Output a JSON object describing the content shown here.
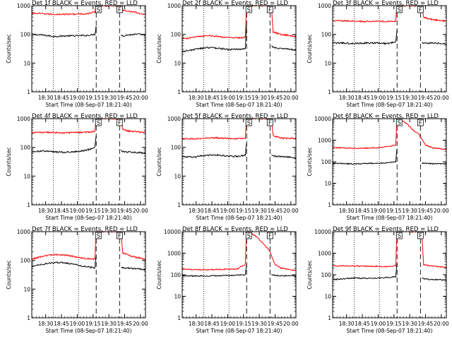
{
  "figure": {
    "colors": {
      "events": "#000000",
      "lld": "#ff0000",
      "axes": "#000000",
      "background": "#ffffff"
    },
    "xticks": [
      "18:30",
      "18:45",
      "19:00",
      "19:15",
      "19:30",
      "19:45",
      "20:00"
    ],
    "xtick_hours": [
      18.5,
      18.75,
      19.0,
      19.25,
      19.5,
      19.75,
      20.0
    ],
    "xlim_hours": [
      18.28,
      20.08
    ],
    "xlabel": "Start Time (08-Sep-07 18:21:40)",
    "ylabel": "Counts/sec",
    "dotted_lines_hours": [
      18.62,
      19.02
    ],
    "dashed_lines_hours": [
      19.3,
      19.67
    ],
    "markers": [
      "S",
      "F"
    ]
  },
  "chart_data": [
    {
      "type": "line",
      "title": "Det 1f BLACK = Events, RED = LLD",
      "ylim": [
        1,
        1000
      ],
      "yscale": "log",
      "yticks": [
        "1",
        "10",
        "100",
        "1000"
      ],
      "series": [
        {
          "name": "Events",
          "x": [
            18.28,
            18.45,
            18.62,
            18.8,
            19.0,
            19.15,
            19.28,
            19.295,
            19.69,
            19.72,
            19.8,
            19.9,
            20.0,
            20.08
          ],
          "y": [
            100,
            95,
            85,
            88,
            90,
            92,
            100,
            180,
            95,
            90,
            95,
            100,
            100,
            95
          ]
        },
        {
          "name": "LLD",
          "x": [
            18.28,
            18.45,
            18.62,
            18.8,
            19.0,
            19.15,
            19.28,
            19.295,
            19.69,
            19.72,
            19.8,
            19.9,
            20.0,
            20.08
          ],
          "y": [
            550,
            520,
            500,
            500,
            510,
            520,
            600,
            1000,
            1000,
            700,
            650,
            600,
            520,
            500
          ]
        }
      ]
    },
    {
      "type": "line",
      "title": "Det 2f BLACK = Events, RED = LLD",
      "ylim": [
        1,
        1000
      ],
      "yscale": "log",
      "yticks": [
        "1",
        "10",
        "100",
        "1000"
      ],
      "series": [
        {
          "name": "Events",
          "x": [
            18.28,
            18.4,
            18.55,
            18.7,
            18.85,
            19.0,
            19.15,
            19.28,
            19.295,
            19.69,
            19.72,
            19.85,
            20.0,
            20.08
          ],
          "y": [
            25,
            28,
            32,
            35,
            33,
            30,
            30,
            32,
            200,
            40,
            35,
            32,
            30,
            28
          ]
        },
        {
          "name": "LLD",
          "x": [
            18.28,
            18.4,
            18.55,
            18.7,
            18.85,
            19.0,
            19.15,
            19.28,
            19.295,
            19.69,
            19.72,
            19.85,
            20.0,
            20.08
          ],
          "y": [
            70,
            75,
            85,
            90,
            85,
            78,
            75,
            80,
            1000,
            1000,
            120,
            100,
            90,
            85
          ]
        }
      ]
    },
    {
      "type": "line",
      "title": "Det 3f BLACK = Events, RED = LLD",
      "ylim": [
        1,
        1000
      ],
      "yscale": "log",
      "yticks": [
        "1",
        "10",
        "100",
        "1000"
      ],
      "series": [
        {
          "name": "Events",
          "x": [
            18.28,
            18.45,
            18.62,
            18.8,
            19.0,
            19.15,
            19.28,
            19.295,
            19.69,
            19.72,
            19.85,
            20.0,
            20.08
          ],
          "y": [
            50,
            50,
            48,
            50,
            50,
            48,
            55,
            130,
            55,
            50,
            50,
            48,
            45
          ]
        },
        {
          "name": "LLD",
          "x": [
            18.28,
            18.45,
            18.62,
            18.8,
            19.0,
            19.15,
            19.28,
            19.295,
            19.69,
            19.72,
            19.85,
            20.0,
            20.08
          ],
          "y": [
            300,
            295,
            290,
            280,
            285,
            280,
            290,
            1000,
            1000,
            400,
            330,
            300,
            290
          ]
        }
      ]
    },
    {
      "type": "line",
      "title": "Det 4f BLACK = Events, RED = LLD",
      "ylim": [
        1,
        1000
      ],
      "yscale": "log",
      "yticks": [
        "1",
        "10",
        "100",
        "1000"
      ],
      "series": [
        {
          "name": "Events",
          "x": [
            18.28,
            18.45,
            18.62,
            18.8,
            19.0,
            19.15,
            19.28,
            19.295,
            19.69,
            19.72,
            19.85,
            20.0,
            20.08
          ],
          "y": [
            70,
            75,
            70,
            68,
            72,
            80,
            100,
            250,
            80,
            70,
            68,
            65,
            62
          ]
        },
        {
          "name": "LLD",
          "x": [
            18.28,
            18.45,
            18.62,
            18.8,
            19.0,
            19.15,
            19.28,
            19.295,
            19.69,
            19.72,
            19.85,
            20.0,
            20.08
          ],
          "y": [
            330,
            335,
            330,
            320,
            330,
            340,
            360,
            1000,
            1000,
            420,
            360,
            340,
            330
          ]
        }
      ]
    },
    {
      "type": "line",
      "title": "Det 5f BLACK = Events, RED = LLD",
      "ylim": [
        1,
        1000
      ],
      "yscale": "log",
      "yticks": [
        "1",
        "10",
        "100",
        "1000"
      ],
      "series": [
        {
          "name": "Events",
          "x": [
            18.28,
            18.45,
            18.62,
            18.8,
            19.0,
            19.15,
            19.28,
            19.295,
            19.69,
            19.72,
            19.85,
            20.0,
            20.08
          ],
          "y": [
            48,
            45,
            52,
            55,
            50,
            48,
            55,
            130,
            55,
            50,
            48,
            45,
            42
          ]
        },
        {
          "name": "LLD",
          "x": [
            18.28,
            18.45,
            18.62,
            18.8,
            19.0,
            19.15,
            19.28,
            19.295,
            19.69,
            19.72,
            19.85,
            20.0,
            20.08
          ],
          "y": [
            200,
            200,
            210,
            215,
            205,
            200,
            210,
            1000,
            1000,
            250,
            210,
            205,
            200
          ]
        }
      ]
    },
    {
      "type": "line",
      "title": "Det 6f BLACK = Events, RED = LLD",
      "ylim": [
        1,
        10000
      ],
      "yscale": "log",
      "yticks": [
        "1",
        "10",
        "100",
        "1000",
        "10000"
      ],
      "series": [
        {
          "name": "Events",
          "x": [
            18.28,
            18.45,
            18.62,
            18.8,
            19.0,
            19.15,
            19.28,
            19.295,
            19.69,
            19.72,
            19.85,
            20.0,
            20.08
          ],
          "y": [
            85,
            82,
            80,
            85,
            85,
            90,
            100,
            400,
            80,
            85,
            80,
            82,
            80
          ]
        },
        {
          "name": "LLD",
          "x": [
            18.28,
            18.45,
            18.62,
            18.8,
            19.0,
            19.15,
            19.28,
            19.295,
            19.36,
            19.45,
            19.55,
            19.65,
            19.75,
            19.85,
            20.0,
            20.08
          ],
          "y": [
            450,
            440,
            420,
            430,
            450,
            500,
            600,
            10000,
            9000,
            6000,
            3000,
            1800,
            600,
            450,
            400,
            380
          ]
        }
      ]
    },
    {
      "type": "line",
      "title": "Det 7f BLACK = Events, RED = LLD",
      "ylim": [
        1,
        1000
      ],
      "yscale": "log",
      "yticks": [
        "1",
        "10",
        "100",
        "1000"
      ],
      "series": [
        {
          "name": "Events",
          "x": [
            18.28,
            18.4,
            18.55,
            18.7,
            18.85,
            19.0,
            19.15,
            19.28,
            19.295,
            19.69,
            19.72,
            19.85,
            20.0,
            20.08
          ],
          "y": [
            60,
            70,
            80,
            85,
            80,
            70,
            60,
            55,
            130,
            60,
            55,
            52,
            50,
            48
          ]
        },
        {
          "name": "LLD",
          "x": [
            18.28,
            18.4,
            18.55,
            18.7,
            18.85,
            19.0,
            19.15,
            19.28,
            19.295,
            19.69,
            19.72,
            19.85,
            20.0,
            20.08
          ],
          "y": [
            110,
            130,
            150,
            160,
            150,
            130,
            115,
            110,
            1000,
            1000,
            180,
            140,
            120,
            110
          ]
        }
      ]
    },
    {
      "type": "line",
      "title": "Det 8f BLACK = Events, RED = LLD",
      "ylim": [
        1,
        10000
      ],
      "yscale": "log",
      "yticks": [
        "1",
        "10",
        "100",
        "1000",
        "10000"
      ],
      "series": [
        {
          "name": "Events",
          "x": [
            18.28,
            18.45,
            18.62,
            18.8,
            19.0,
            19.15,
            19.28,
            19.295,
            19.69,
            19.72,
            19.85,
            20.0,
            20.08
          ],
          "y": [
            90,
            88,
            88,
            90,
            92,
            95,
            100,
            300,
            100,
            95,
            90,
            90,
            88
          ]
        },
        {
          "name": "LLD",
          "x": [
            18.28,
            18.45,
            18.62,
            18.8,
            19.0,
            19.15,
            19.28,
            19.295,
            19.36,
            19.45,
            19.55,
            19.65,
            19.75,
            19.85,
            20.0,
            20.08
          ],
          "y": [
            180,
            175,
            170,
            175,
            180,
            185,
            300,
            10000,
            9000,
            6000,
            3000,
            1500,
            300,
            200,
            170,
            160
          ]
        }
      ]
    },
    {
      "type": "line",
      "title": "Det 9f BLACK = Events, RED = LLD",
      "ylim": [
        1,
        10000
      ],
      "yscale": "log",
      "yticks": [
        "1",
        "10",
        "100",
        "1000",
        "10000"
      ],
      "series": [
        {
          "name": "Events",
          "x": [
            18.28,
            18.45,
            18.62,
            18.8,
            19.0,
            19.15,
            19.28,
            19.295,
            19.69,
            19.72,
            19.85,
            20.0,
            20.08
          ],
          "y": [
            60,
            65,
            70,
            68,
            70,
            75,
            80,
            300,
            70,
            65,
            60,
            58,
            55
          ]
        },
        {
          "name": "LLD",
          "x": [
            18.28,
            18.45,
            18.62,
            18.8,
            19.0,
            19.15,
            19.28,
            19.295,
            19.69,
            19.72,
            19.85,
            20.0,
            20.08
          ],
          "y": [
            250,
            260,
            255,
            250,
            245,
            240,
            260,
            10000,
            10000,
            300,
            250,
            230,
            220
          ]
        }
      ]
    }
  ]
}
